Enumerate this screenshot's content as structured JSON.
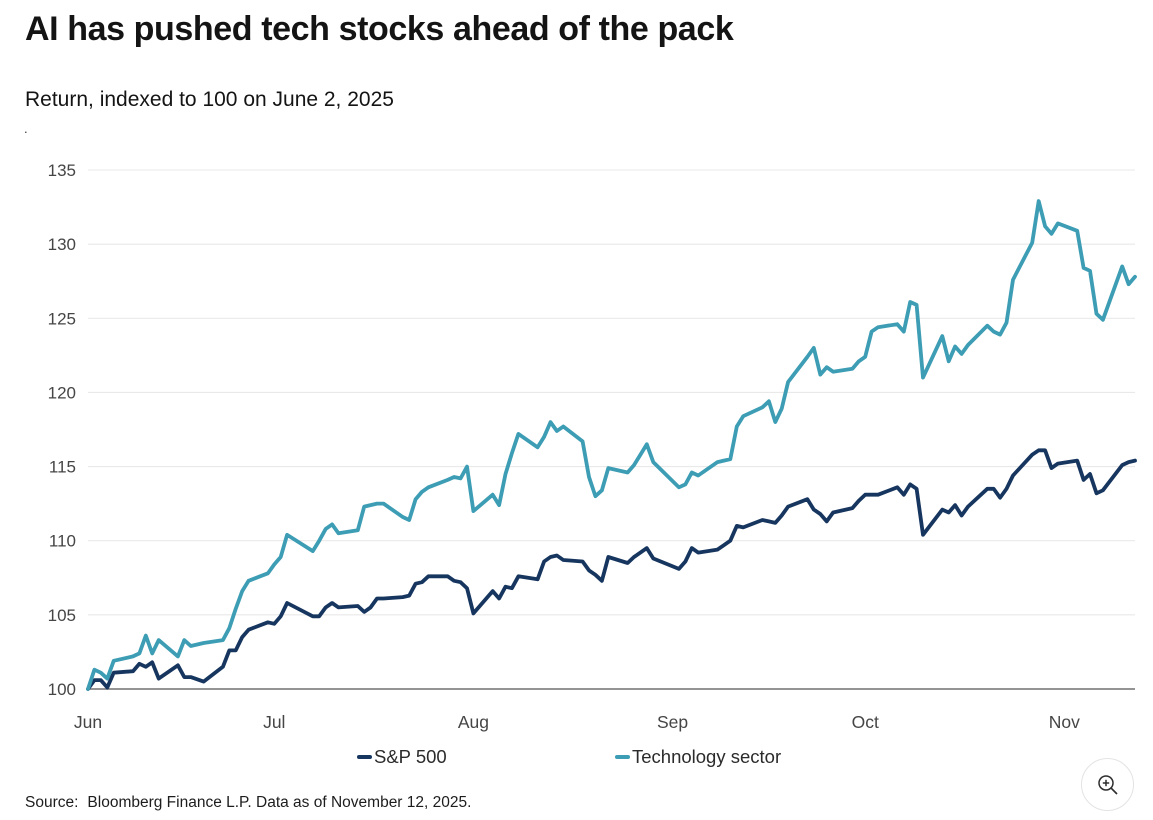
{
  "header": {
    "title": "AI has pushed tech stocks ahead of the pack",
    "subtitle": "Return, indexed to 100 on June 2, 2025",
    "stray_mark": "."
  },
  "chart_data": {
    "type": "line",
    "title": "AI has pushed tech stocks ahead of the pack",
    "subtitle": "Return, indexed to 100 on June 2, 2025",
    "xlabel": "",
    "ylabel": "Return, indexed to 100 on June 2, 2025",
    "ylim": [
      100,
      135
    ],
    "grid": true,
    "legend_position": "bottom",
    "axis_color": "#858585",
    "grid_color": "#e9e9e9",
    "tick_label_color": "#454545",
    "yticks": [
      100,
      105,
      110,
      115,
      120,
      125,
      130,
      135
    ],
    "xticks": [
      {
        "label": "Jun",
        "date": "2025-06-02"
      },
      {
        "label": "Jul",
        "date": "2025-07-01"
      },
      {
        "label": "Aug",
        "date": "2025-08-01"
      },
      {
        "label": "Sep",
        "date": "2025-09-01"
      },
      {
        "label": "Oct",
        "date": "2025-10-01"
      },
      {
        "label": "Nov",
        "date": "2025-11-01"
      }
    ],
    "x_dates": [
      "2025-06-02",
      "2025-06-03",
      "2025-06-04",
      "2025-06-05",
      "2025-06-06",
      "2025-06-09",
      "2025-06-10",
      "2025-06-11",
      "2025-06-12",
      "2025-06-13",
      "2025-06-16",
      "2025-06-17",
      "2025-06-18",
      "2025-06-20",
      "2025-06-23",
      "2025-06-24",
      "2025-06-25",
      "2025-06-26",
      "2025-06-27",
      "2025-06-30",
      "2025-07-01",
      "2025-07-02",
      "2025-07-03",
      "2025-07-07",
      "2025-07-08",
      "2025-07-09",
      "2025-07-10",
      "2025-07-11",
      "2025-07-14",
      "2025-07-15",
      "2025-07-16",
      "2025-07-17",
      "2025-07-18",
      "2025-07-21",
      "2025-07-22",
      "2025-07-23",
      "2025-07-24",
      "2025-07-25",
      "2025-07-28",
      "2025-07-29",
      "2025-07-30",
      "2025-07-31",
      "2025-08-01",
      "2025-08-04",
      "2025-08-05",
      "2025-08-06",
      "2025-08-07",
      "2025-08-08",
      "2025-08-11",
      "2025-08-12",
      "2025-08-13",
      "2025-08-14",
      "2025-08-15",
      "2025-08-18",
      "2025-08-19",
      "2025-08-20",
      "2025-08-21",
      "2025-08-22",
      "2025-08-25",
      "2025-08-26",
      "2025-08-27",
      "2025-08-28",
      "2025-08-29",
      "2025-09-02",
      "2025-09-03",
      "2025-09-04",
      "2025-09-05",
      "2025-09-08",
      "2025-09-09",
      "2025-09-10",
      "2025-09-11",
      "2025-09-12",
      "2025-09-15",
      "2025-09-16",
      "2025-09-17",
      "2025-09-18",
      "2025-09-19",
      "2025-09-22",
      "2025-09-23",
      "2025-09-24",
      "2025-09-25",
      "2025-09-26",
      "2025-09-29",
      "2025-09-30",
      "2025-10-01",
      "2025-10-02",
      "2025-10-03",
      "2025-10-06",
      "2025-10-07",
      "2025-10-08",
      "2025-10-09",
      "2025-10-10",
      "2025-10-13",
      "2025-10-14",
      "2025-10-15",
      "2025-10-16",
      "2025-10-17",
      "2025-10-20",
      "2025-10-21",
      "2025-10-22",
      "2025-10-23",
      "2025-10-24",
      "2025-10-27",
      "2025-10-28",
      "2025-10-29",
      "2025-10-30",
      "2025-10-31",
      "2025-11-03",
      "2025-11-04",
      "2025-11-05",
      "2025-11-06",
      "2025-11-07",
      "2025-11-10",
      "2025-11-11",
      "2025-11-12"
    ],
    "series": [
      {
        "name": "S&P 500",
        "color": "#17365f",
        "values": [
          100.0,
          100.6,
          100.6,
          100.1,
          101.1,
          101.2,
          101.7,
          101.5,
          101.8,
          100.7,
          101.6,
          100.8,
          100.8,
          100.5,
          101.5,
          102.6,
          102.6,
          103.5,
          104.0,
          104.5,
          104.4,
          104.9,
          105.8,
          104.9,
          104.9,
          105.5,
          105.8,
          105.5,
          105.6,
          105.2,
          105.5,
          106.1,
          106.1,
          106.2,
          106.3,
          107.1,
          107.2,
          107.6,
          107.6,
          107.3,
          107.2,
          106.8,
          105.1,
          106.6,
          106.1,
          106.9,
          106.8,
          107.6,
          107.4,
          108.6,
          108.9,
          109.0,
          108.7,
          108.6,
          108.0,
          107.7,
          107.3,
          108.9,
          108.5,
          108.9,
          109.2,
          109.5,
          108.8,
          108.1,
          108.6,
          109.5,
          109.2,
          109.4,
          109.7,
          110.0,
          111.0,
          110.9,
          111.4,
          111.3,
          111.2,
          111.7,
          112.3,
          112.8,
          112.1,
          111.8,
          111.3,
          111.9,
          112.2,
          112.7,
          113.1,
          113.1,
          113.1,
          113.6,
          113.1,
          113.8,
          113.5,
          110.4,
          112.1,
          111.9,
          112.4,
          111.7,
          112.3,
          113.5,
          113.5,
          112.9,
          113.5,
          114.4,
          115.8,
          116.1,
          116.1,
          114.9,
          115.2,
          115.4,
          114.1,
          114.5,
          113.2,
          113.4,
          115.1,
          115.3,
          115.4
        ]
      },
      {
        "name": "Technology sector",
        "color": "#3d9db4",
        "values": [
          100.0,
          101.3,
          101.1,
          100.7,
          101.9,
          102.2,
          102.4,
          103.6,
          102.4,
          103.3,
          102.2,
          103.3,
          102.9,
          103.1,
          103.3,
          104.1,
          105.4,
          106.6,
          107.3,
          107.8,
          108.4,
          108.9,
          110.4,
          109.3,
          110.0,
          110.8,
          111.1,
          110.5,
          110.7,
          112.3,
          112.4,
          112.5,
          112.5,
          111.6,
          111.4,
          112.8,
          113.3,
          113.6,
          114.1,
          114.3,
          114.2,
          115.0,
          112.0,
          113.1,
          112.4,
          114.5,
          115.9,
          117.2,
          116.3,
          117.0,
          118.0,
          117.4,
          117.7,
          116.7,
          114.3,
          113.0,
          113.4,
          114.9,
          114.6,
          115.1,
          115.8,
          116.5,
          115.3,
          113.6,
          113.8,
          114.6,
          114.4,
          115.3,
          115.4,
          115.5,
          117.7,
          118.4,
          119.0,
          119.4,
          118.0,
          118.9,
          120.7,
          122.4,
          123.0,
          121.2,
          121.7,
          121.4,
          121.6,
          122.1,
          122.4,
          124.1,
          124.4,
          124.6,
          124.1,
          126.1,
          125.9,
          121.0,
          123.8,
          122.1,
          123.1,
          122.6,
          123.2,
          124.5,
          124.1,
          123.9,
          124.7,
          127.6,
          130.1,
          132.9,
          131.2,
          130.7,
          131.4,
          130.9,
          128.4,
          128.2,
          125.3,
          124.9,
          128.5,
          127.3,
          127.8
        ]
      }
    ]
  },
  "footer": {
    "source_prefix": "Source:",
    "source_text": "Bloomberg Finance L.P. Data as of November 12, 2025."
  },
  "controls": {
    "zoom_icon": "magnifier-plus"
  }
}
